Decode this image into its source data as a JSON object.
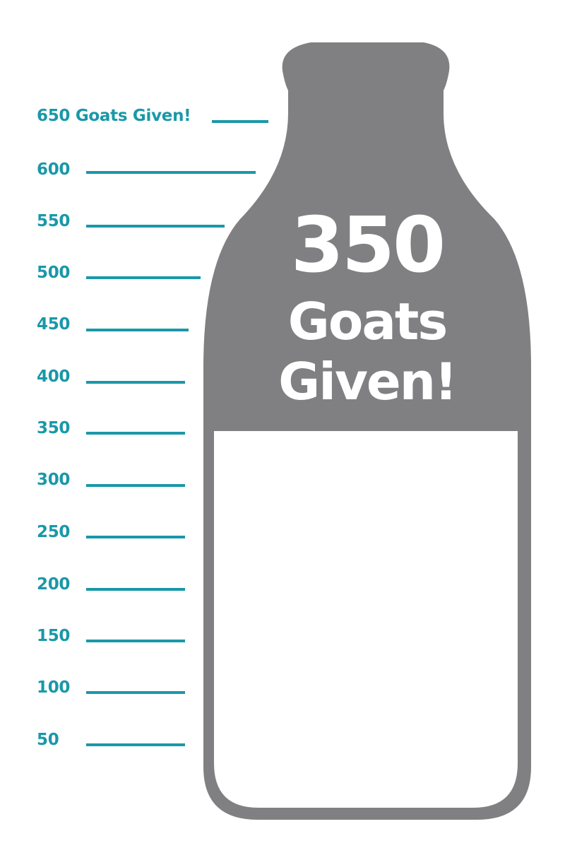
{
  "thermometer": {
    "top_label": "650 Goats Given!",
    "marks": [
      "600",
      "550",
      "500",
      "450",
      "400",
      "350",
      "300",
      "250",
      "200",
      "150",
      "100",
      "50"
    ],
    "max": 650,
    "current": 350,
    "colors": {
      "accent": "#1a98a8",
      "bottle": "#808083",
      "empty": "#ffffff"
    }
  },
  "headline": {
    "number": "350",
    "line1": "Goats",
    "line2": "Given!"
  }
}
